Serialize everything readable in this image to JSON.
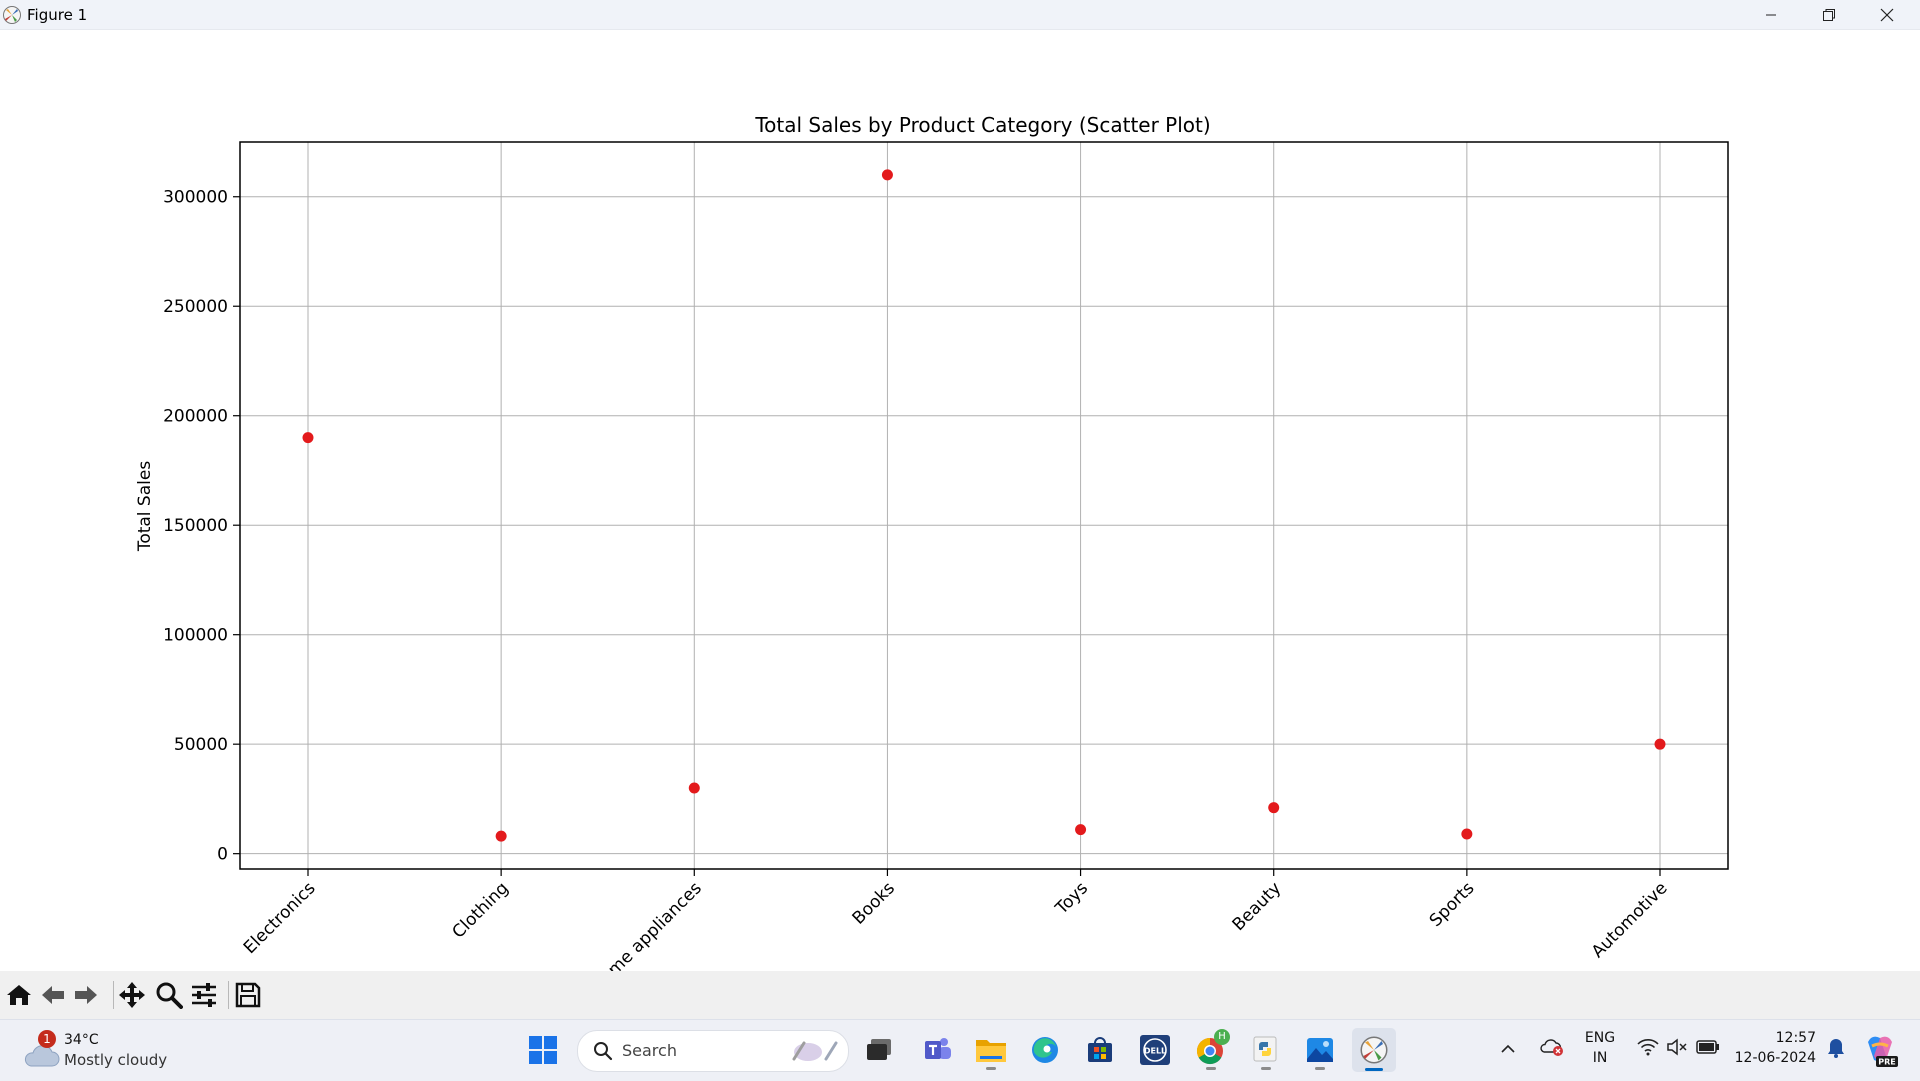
{
  "window": {
    "title": "Figure 1"
  },
  "chart_data": {
    "type": "scatter",
    "title": "Total Sales by Product Category (Scatter Plot)",
    "xlabel": "",
    "ylabel": "Total Sales",
    "categories": [
      "Electronics",
      "Clothing",
      "Home appliances",
      "Books",
      "Toys",
      "Beauty",
      "Sports",
      "Automotive"
    ],
    "values": [
      190000,
      8000,
      30000,
      310000,
      11000,
      21000,
      9000,
      50000
    ],
    "yticks": [
      0,
      50000,
      100000,
      150000,
      200000,
      250000,
      300000
    ],
    "ytick_labels": [
      "0",
      "50000",
      "100000",
      "150000",
      "200000",
      "250000",
      "300000"
    ],
    "ylim": [
      -7000,
      325000
    ],
    "grid": true,
    "marker_color": "#e31a1c"
  },
  "toolbar": {
    "buttons": [
      {
        "name": "home-button",
        "icon": "home-icon"
      },
      {
        "name": "back-button",
        "icon": "arrow-left-icon"
      },
      {
        "name": "forward-button",
        "icon": "arrow-right-icon"
      },
      {
        "name": "pan-button",
        "icon": "move-icon"
      },
      {
        "name": "zoom-button",
        "icon": "magnifier-icon"
      },
      {
        "name": "configure-subplots-button",
        "icon": "sliders-icon"
      },
      {
        "name": "save-button",
        "icon": "floppy-icon"
      }
    ]
  },
  "taskbar": {
    "weather": {
      "temp": "34°C",
      "desc": "Mostly cloudy",
      "badge": "1"
    },
    "search": {
      "placeholder": "Search"
    },
    "tray": {
      "lang_top": "ENG",
      "lang_bottom": "IN",
      "time": "12:57",
      "date": "12-06-2024"
    },
    "chrome_badge": "H",
    "dell_label": "DELL",
    "copilot_label": "PRE"
  }
}
